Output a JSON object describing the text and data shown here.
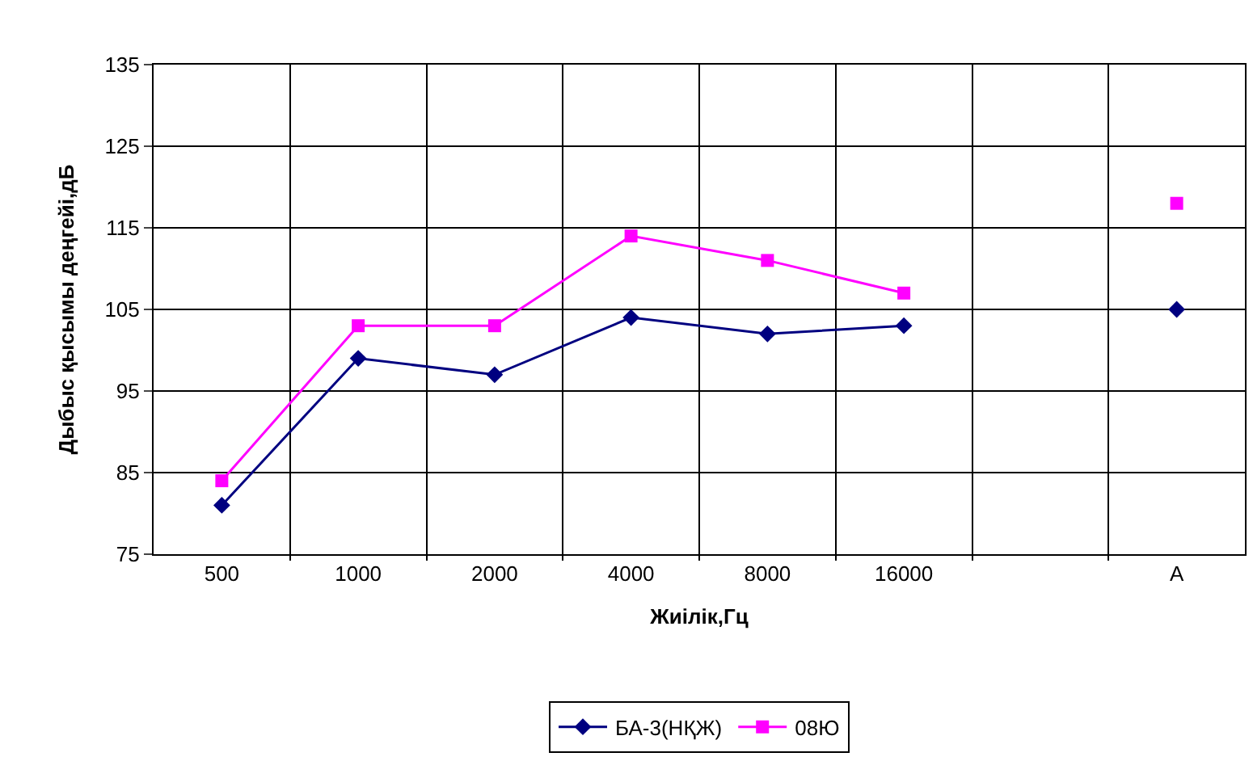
{
  "chart_data": {
    "type": "line",
    "xlabel": "Жиілік,Гц",
    "ylabel": "Дыбыс қысымы деңгейі,дБ",
    "categories": [
      "500",
      "1000",
      "2000",
      "4000",
      "8000",
      "16000",
      null,
      "A"
    ],
    "series": [
      {
        "name": "БА-3(НҚЖ)",
        "color": "#000080",
        "marker": "diamond",
        "values": [
          81,
          99,
          97,
          104,
          102,
          103,
          null,
          105
        ]
      },
      {
        "name": "08Ю",
        "color": "#ff00ff",
        "marker": "square",
        "values": [
          84,
          103,
          103,
          114,
          111,
          107,
          null,
          118
        ]
      }
    ],
    "ylim": [
      75,
      135
    ],
    "yticks": [
      75,
      85,
      95,
      105,
      115,
      125,
      135
    ],
    "grid": true,
    "legend": "bottom",
    "line_style": "solid"
  }
}
